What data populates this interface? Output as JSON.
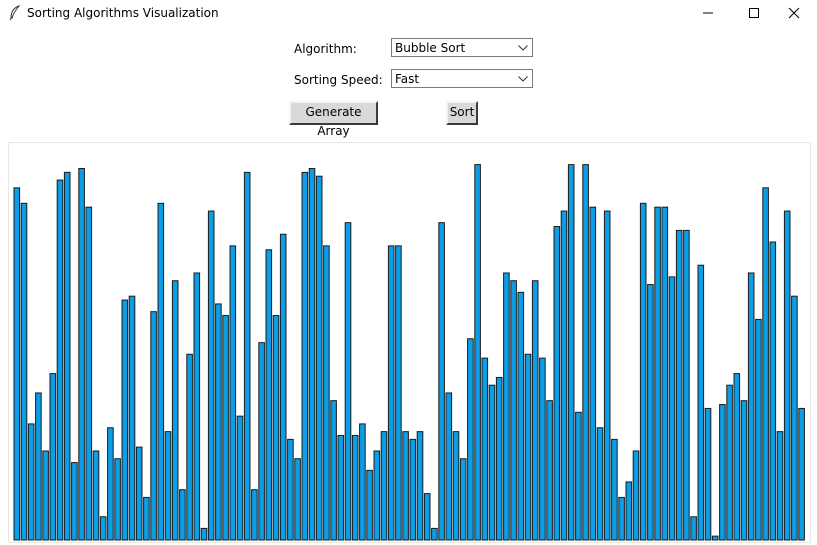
{
  "window": {
    "title": "Sorting Algorithms Visualization",
    "app_icon": "feather-icon"
  },
  "controls": {
    "algorithm_label": "Algorithm:",
    "algorithm_value": "Bubble Sort",
    "speed_label": "Sorting Speed:",
    "speed_value": "Fast",
    "generate_label": "Generate Array",
    "sort_label": "Sort"
  },
  "colors": {
    "bar_fill": "#0b9ee6",
    "bar_stroke": "#1b1b1b",
    "button_face": "#d9d9d9"
  },
  "bars": {
    "max_value": 100,
    "values": [
      91,
      87,
      30,
      38,
      23,
      43,
      93,
      95,
      20,
      96,
      86,
      23,
      6,
      29,
      21,
      62,
      63,
      24,
      11,
      59,
      87,
      28,
      67,
      13,
      48,
      69,
      3,
      85,
      61,
      58,
      76,
      32,
      95,
      13,
      51,
      75,
      58,
      79,
      26,
      21,
      95,
      96,
      94,
      76,
      36,
      27,
      82,
      27,
      30,
      18,
      23,
      28,
      76,
      76,
      28,
      26,
      28,
      12,
      3,
      82,
      38,
      28,
      21,
      52,
      97,
      47,
      40,
      42,
      69,
      67,
      64,
      48,
      67,
      47,
      36,
      81,
      85,
      97,
      33,
      97,
      86,
      29,
      85,
      26,
      11,
      15,
      23,
      87,
      66,
      86,
      86,
      68,
      80,
      80,
      6,
      71,
      34,
      1,
      35,
      40,
      43,
      36,
      69,
      57,
      91,
      77,
      28,
      85,
      63,
      34
    ]
  }
}
